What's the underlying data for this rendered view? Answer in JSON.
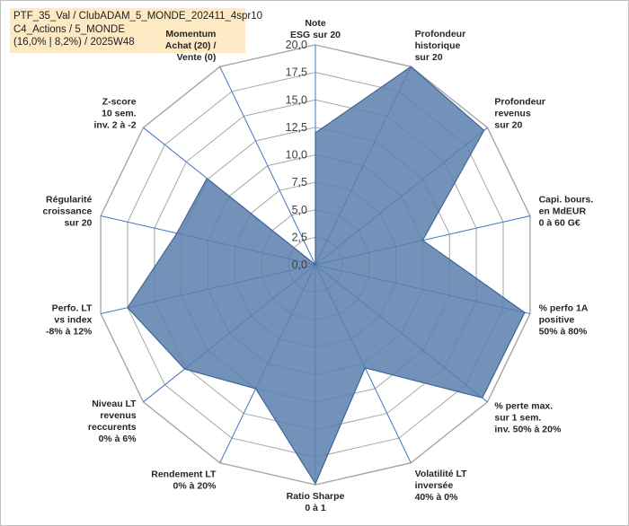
{
  "title": {
    "line1": "PTF_35_Val / ClubADAM_5_MONDE_202411_4spr10",
    "line2": "C4_Actions / 5_MONDE",
    "line3": "(16,0% | 8,2%) / 2025W48"
  },
  "colors": {
    "fill": "#5b7fad",
    "stroke": "#3f6599",
    "grid": "#a6a6a6",
    "spoke": "#4472c4"
  },
  "chart_data": {
    "type": "radar",
    "range": [
      0,
      20
    ],
    "ticks": [
      "0,0",
      "2,5",
      "5,0",
      "7,5",
      "10,0",
      "12,5",
      "15,0",
      "17,5",
      "20,0"
    ],
    "tick_values": [
      0,
      2.5,
      5,
      7.5,
      10,
      12.5,
      15,
      17.5,
      20
    ],
    "axes": [
      {
        "label": [
          "Note",
          "ESG sur 20"
        ],
        "value": 12
      },
      {
        "label": [
          "Profondeur",
          "historique",
          "sur 20"
        ],
        "value": 20
      },
      {
        "label": [
          "Profondeur",
          "revenus",
          "sur 20"
        ],
        "value": 19.6
      },
      {
        "label": [
          "Capi. bours.",
          "en MdEUR",
          "0 à 60 G€"
        ],
        "value": 10
      },
      {
        "label": [
          "% perfo 1A",
          "positive",
          "50% à 80%"
        ],
        "value": 19.5
      },
      {
        "label": [
          "% perte max.",
          "sur 1 sem.",
          "inv. 50% à 20%"
        ],
        "value": 19.4
      },
      {
        "label": [
          "Volatilité LT",
          "inversée",
          "40% à 0%"
        ],
        "value": 10.4
      },
      {
        "label": [
          "Ratio Sharpe",
          "0 à 1"
        ],
        "value": 19.9
      },
      {
        "label": [
          "Rendement LT",
          "0% à 20%"
        ],
        "value": 12.5
      },
      {
        "label": [
          "Niveau LT",
          "revenus",
          "reccurents",
          "0% à 6%"
        ],
        "value": 15.2
      },
      {
        "label": [
          "Perfo. LT",
          "vs index",
          "-8% à 12%"
        ],
        "value": 17.5
      },
      {
        "label": [
          "Régularité",
          "croissance",
          "sur 20"
        ],
        "value": 12.9
      },
      {
        "label": [
          "Z-score",
          "10 sem.",
          "inv. 2 à -2"
        ],
        "value": 12.6
      },
      {
        "label": [
          "Momentum",
          "Achat (20) /",
          "Vente (0)"
        ],
        "value": 0
      }
    ]
  }
}
